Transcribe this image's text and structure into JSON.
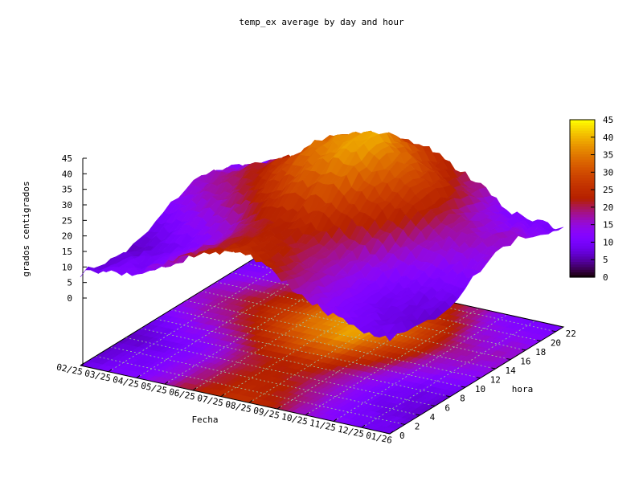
{
  "chart_data": {
    "type": "surface",
    "title": "temp_ex average by day and hour",
    "xlabel": "Fecha",
    "ylabel": "hora",
    "zlabel": "grados centigrados",
    "x_ticks": [
      "02/25",
      "03/25",
      "04/25",
      "05/25",
      "06/25",
      "07/25",
      "08/25",
      "09/25",
      "10/25",
      "11/25",
      "12/25",
      "01/26"
    ],
    "y_ticks": [
      0,
      2,
      4,
      6,
      8,
      10,
      12,
      14,
      16,
      18,
      20,
      22
    ],
    "z_ticks": [
      0,
      5,
      10,
      15,
      20,
      25,
      30,
      35,
      40,
      45
    ],
    "zlim": [
      0,
      45
    ],
    "colorbar": {
      "range": [
        0,
        45
      ],
      "ticks": [
        0,
        5,
        10,
        15,
        20,
        25,
        30,
        35,
        40,
        45
      ],
      "palette": "black-purple-red-orange-yellow"
    },
    "grid": true,
    "projected_map_on_base": true,
    "hours": [
      0,
      2,
      4,
      6,
      8,
      10,
      12,
      14,
      16,
      18,
      20,
      22
    ],
    "months": [
      "02/25",
      "03/25",
      "04/25",
      "05/25",
      "06/25",
      "07/25",
      "08/25",
      "09/25",
      "10/25",
      "11/25",
      "12/25",
      "01/26"
    ],
    "values": [
      [
        8,
        7,
        6,
        6,
        7,
        10,
        13,
        15,
        15,
        13,
        11,
        9
      ],
      [
        10,
        9,
        9,
        8,
        10,
        13,
        16,
        18,
        18,
        16,
        13,
        11
      ],
      [
        12,
        11,
        11,
        10,
        12,
        15,
        19,
        21,
        22,
        20,
        16,
        14
      ],
      [
        17,
        15,
        15,
        14,
        16,
        20,
        24,
        26,
        27,
        24,
        21,
        18
      ],
      [
        22,
        21,
        20,
        19,
        21,
        26,
        30,
        33,
        34,
        31,
        27,
        24
      ],
      [
        25,
        24,
        23,
        22,
        24,
        29,
        34,
        37,
        38,
        35,
        30,
        27
      ],
      [
        26,
        24,
        23,
        22,
        25,
        30,
        36,
        39,
        40,
        36,
        31,
        27
      ],
      [
        21,
        20,
        19,
        18,
        20,
        25,
        29,
        32,
        33,
        30,
        26,
        23
      ],
      [
        16,
        15,
        15,
        14,
        16,
        19,
        23,
        25,
        26,
        24,
        20,
        18
      ],
      [
        12,
        11,
        10,
        10,
        11,
        14,
        16,
        18,
        18,
        16,
        14,
        12
      ],
      [
        10,
        9,
        8,
        8,
        9,
        12,
        14,
        16,
        16,
        14,
        12,
        10
      ],
      [
        9,
        8,
        7,
        7,
        8,
        11,
        14,
        16,
        16,
        14,
        12,
        10
      ]
    ]
  }
}
